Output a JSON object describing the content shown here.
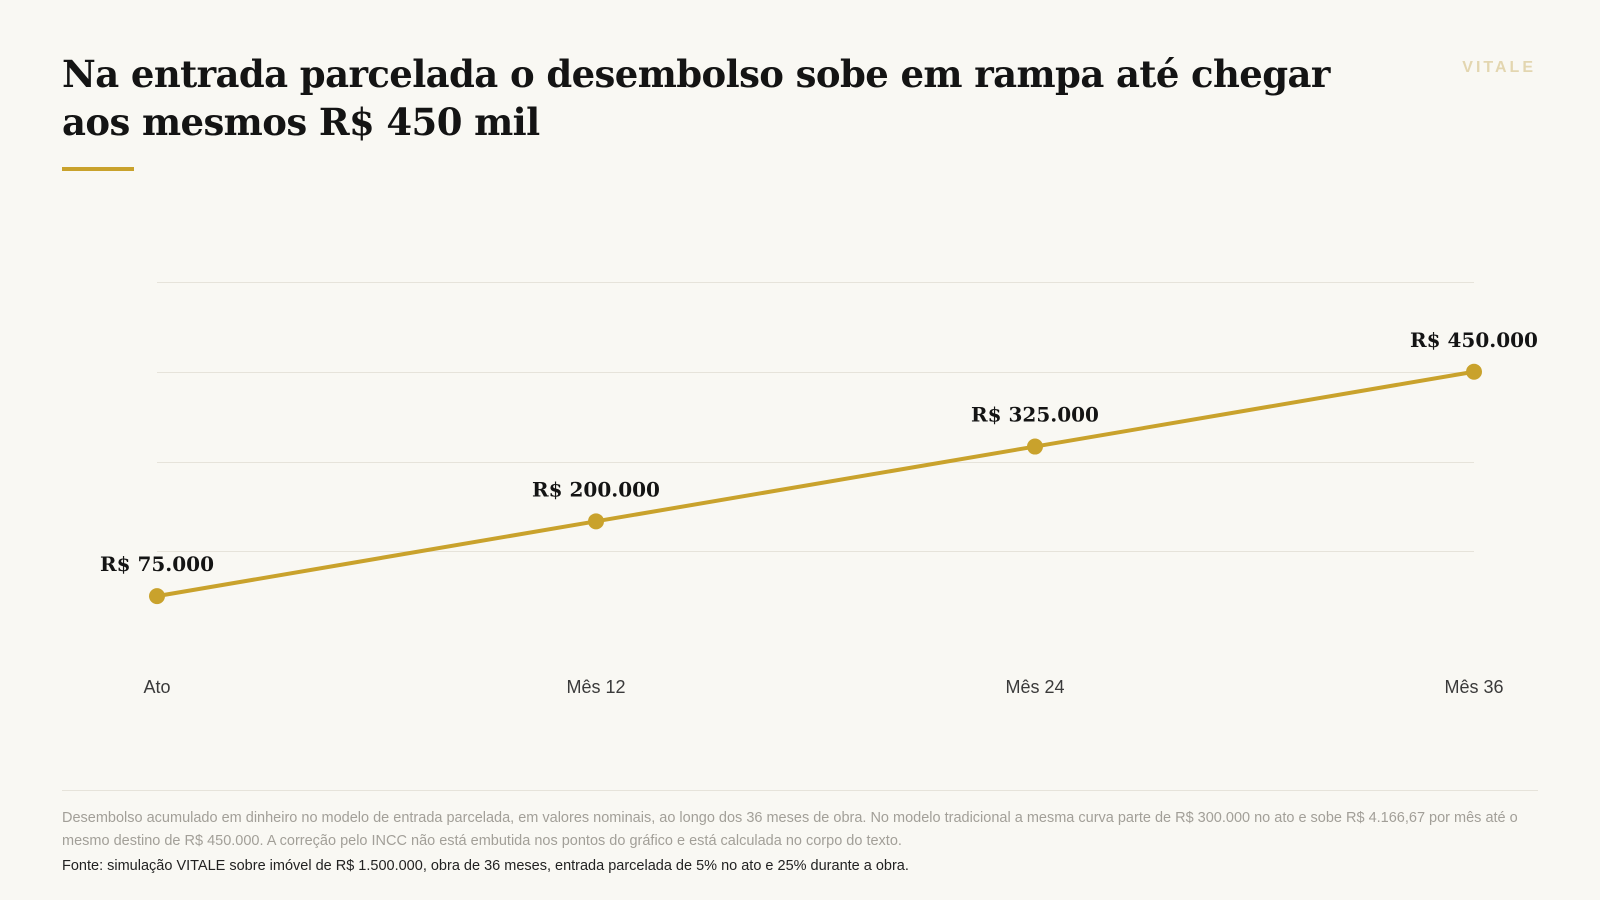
{
  "header": {
    "title": "Na entrada parcelada o desembolso sobe em rampa até chegar aos mesmos R$ 450 mil",
    "brand": "VITALE"
  },
  "chart_data": {
    "type": "line",
    "categories": [
      "Ato",
      "Mês 12",
      "Mês 24",
      "Mês 36"
    ],
    "series": [
      {
        "values": [
          75000,
          200000,
          325000,
          450000
        ],
        "data_labels": [
          "R$ 75.000",
          "R$ 200.000",
          "R$ 325.000",
          "R$ 450.000"
        ]
      }
    ],
    "ylim": [
      0,
      600000
    ],
    "yticks": [
      0,
      150000,
      300000,
      450000,
      600000
    ],
    "grid": true,
    "y_tick_labels_shown": false,
    "legend": "none",
    "colors": {
      "line": "#c9a22c",
      "grid": "#e6e3da"
    }
  },
  "footer": {
    "note": "Desembolso acumulado em dinheiro no modelo de entrada parcelada, em valores nominais, ao longo dos 36 meses de obra. No modelo tradicional a mesma curva parte de R$ 300.000 no ato e sobe R$ 4.166,67 por mês até o mesmo destino de R$ 450.000. A correção pelo INCC não está embutida nos pontos do gráfico e está calculada no corpo do texto.",
    "source": "Fonte: simulação VITALE sobre imóvel de R$ 1.500.000, obra de 36 meses, entrada parcelada de 5% no ato e 25% durante a obra."
  }
}
